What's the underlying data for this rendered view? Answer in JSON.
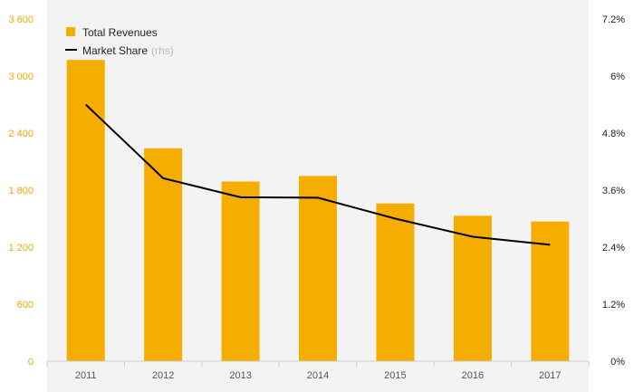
{
  "chart_data": {
    "type": "bar",
    "categories": [
      "2011",
      "2012",
      "2013",
      "2014",
      "2015",
      "2016",
      "2017"
    ],
    "series": [
      {
        "name": "Total Revenues",
        "type": "bar",
        "axis": "left",
        "color": "#f5ae00",
        "values": [
          3170,
          2240,
          1890,
          1950,
          1660,
          1530,
          1470
        ]
      },
      {
        "name": "Market Share",
        "type": "line",
        "axis": "right",
        "color": "#000000",
        "values": [
          5.4,
          3.85,
          3.45,
          3.44,
          3.0,
          2.62,
          2.45
        ]
      }
    ],
    "legend": {
      "items": [
        {
          "label": "Total Revenues",
          "note": "",
          "color": "#f5ae00",
          "marker": "square"
        },
        {
          "label": "Market Share",
          "note": "(rhs)",
          "color": "#000000",
          "marker": "line"
        }
      ],
      "position": "top-left"
    },
    "y_left": {
      "ylim": [
        0,
        3600
      ],
      "ticks": [
        "0",
        "600",
        "1 200",
        "1 800",
        "2 400",
        "3 000",
        "3 600"
      ],
      "color": "#f5a800"
    },
    "y_right": {
      "ylim": [
        0,
        7.2
      ],
      "ticks": [
        "0%",
        "1.2%",
        "2.4%",
        "3.6%",
        "4.8%",
        "6%",
        "7.2%"
      ],
      "color": "#222222"
    },
    "plot_background": "#f3f3f3",
    "grid": false
  }
}
